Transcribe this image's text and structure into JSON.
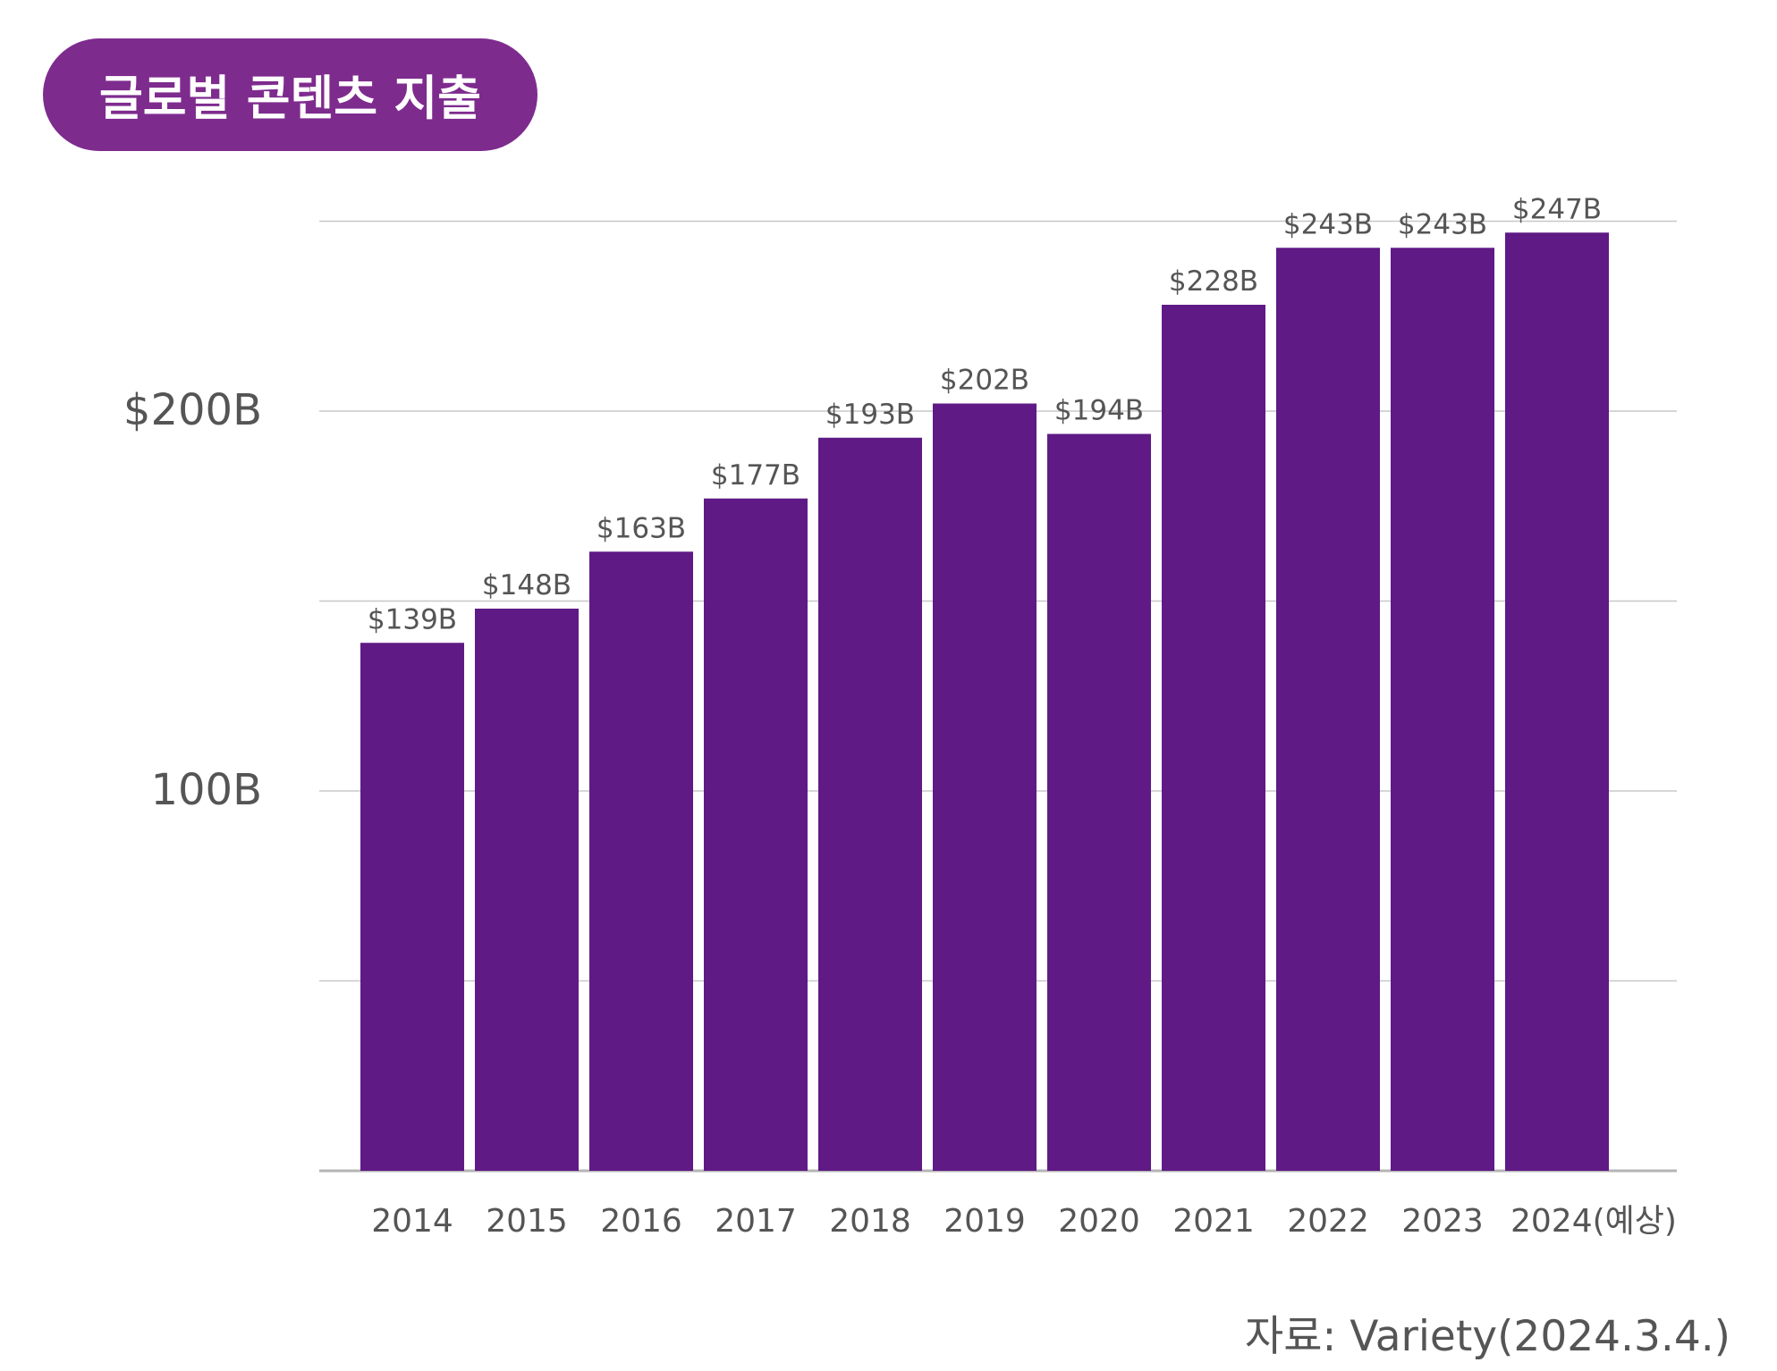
{
  "header": {
    "title": "글로벌 콘텐츠 지출"
  },
  "source": {
    "text": "자료: Variety(2024.3.4.)"
  },
  "colors": {
    "bar": "#5f1a85",
    "title_bg": "#7e2b8e",
    "grid": "#c8c8c8",
    "baseline": "#b4b4b4",
    "text": "#555555"
  },
  "chart_data": {
    "type": "bar",
    "categories": [
      "2014",
      "2015",
      "2016",
      "2017",
      "2018",
      "2019",
      "2020",
      "2021",
      "2022",
      "2023",
      "2024(예상)"
    ],
    "values": [
      139,
      148,
      163,
      177,
      193,
      202,
      194,
      228,
      243,
      243,
      247
    ],
    "data_labels": [
      "$139B",
      "$148B",
      "$163B",
      "$177B",
      "$193B",
      "$202B",
      "$194B",
      "$228B",
      "$243B",
      "$243B",
      "$247B"
    ],
    "unit": "$B",
    "ylim": [
      0,
      250
    ],
    "gridlines": [
      0,
      50,
      100,
      150,
      200,
      250
    ],
    "y_tick_labels": [
      {
        "value": 100,
        "label": "100B"
      },
      {
        "value": 200,
        "label": "$200B"
      }
    ],
    "title": "글로벌 콘텐츠 지출",
    "xlabel": "",
    "ylabel": "",
    "grid": true,
    "legend": "none"
  }
}
